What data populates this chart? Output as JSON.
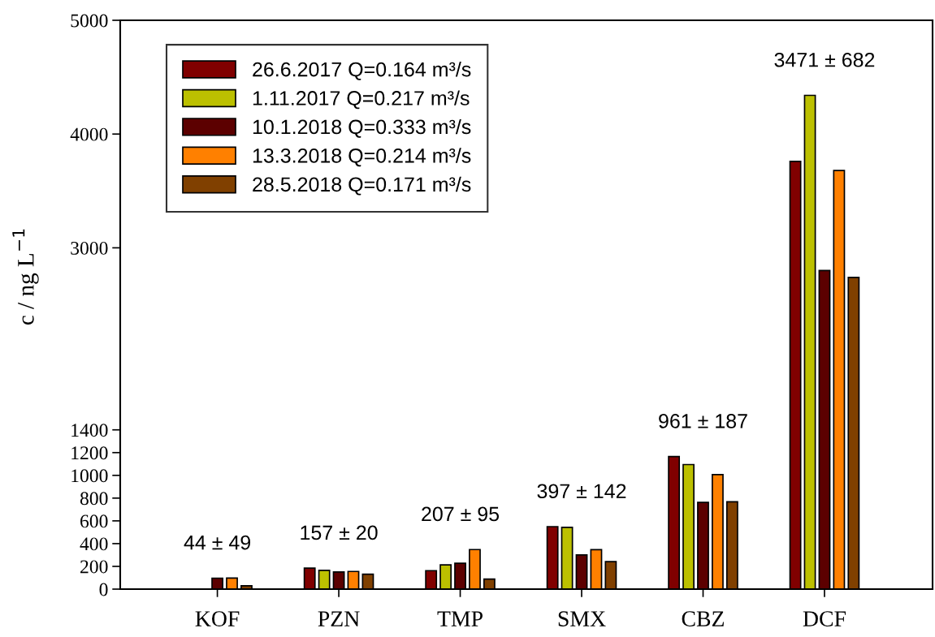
{
  "chart_data": {
    "type": "bar",
    "categories": [
      "KOF",
      "PZN",
      "TMP",
      "SMX",
      "CBZ",
      "DCF"
    ],
    "ylim": [
      0,
      5000
    ],
    "yticks": [
      0,
      200,
      400,
      600,
      800,
      1000,
      1200,
      1400,
      3000,
      4000,
      5000
    ],
    "ylabel": "c / ng L$^{−1}$",
    "grid": false,
    "legend": "top left",
    "series": [
      {
        "name": "26.6.2017 Q=0.164 m³/s",
        "color": "#800000",
        "values": [
          null,
          184,
          162,
          549,
          1165,
          3760
        ]
      },
      {
        "name": "1.11.2017 Q=0.217 m³/s",
        "color": "#bcc000",
        "values": [
          null,
          165,
          213,
          543,
          1095,
          4340
        ]
      },
      {
        "name": "10.1.2018 Q=0.333 m³/s",
        "color": "#5c0000",
        "values": [
          96,
          151,
          227,
          301,
          762,
          2800
        ]
      },
      {
        "name": "13.3.2018 Q=0.214 m³/s",
        "color": "#ff8000",
        "values": [
          97,
          155,
          348,
          347,
          1007,
          3680
        ]
      },
      {
        "name": "28.5.2018 Q=0.171 m³/s",
        "color": "#804000",
        "values": [
          29,
          131,
          88,
          242,
          768,
          2740
        ]
      }
    ],
    "annotations": [
      "44 ± 49",
      "157 ± 20",
      "207 ± 95",
      "397 ± 142",
      "961 ± 187",
      "3471 ± 682"
    ]
  }
}
